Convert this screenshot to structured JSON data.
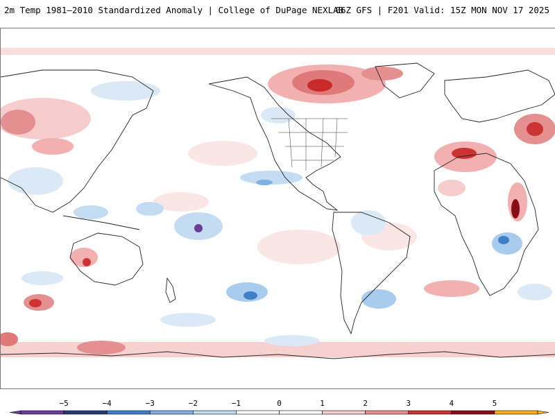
{
  "header": {
    "title": "2m Temp 1981–2010 Standardized Anomaly | College of DuPage NEXLAB",
    "run_info": "06Z GFS | F201 Valid: 15Z MON NOV 17 2025"
  },
  "map": {
    "projection": "global cylindrical, Pacific-centered",
    "variable": "2m temperature standardized anomaly"
  },
  "legend": {
    "ticks": [
      "−5",
      "−4",
      "−3",
      "−2",
      "−1",
      "0",
      "1",
      "2",
      "3",
      "4",
      "5"
    ],
    "colors": [
      "#6a3d9a",
      "#253c78",
      "#3f7fc8",
      "#7fb2e2",
      "#c4dcf2",
      "#ffffff",
      "#ffffff",
      "#f6cccc",
      "#e49090",
      "#cc3333",
      "#8a0d16",
      "#f7b21a"
    ]
  }
}
